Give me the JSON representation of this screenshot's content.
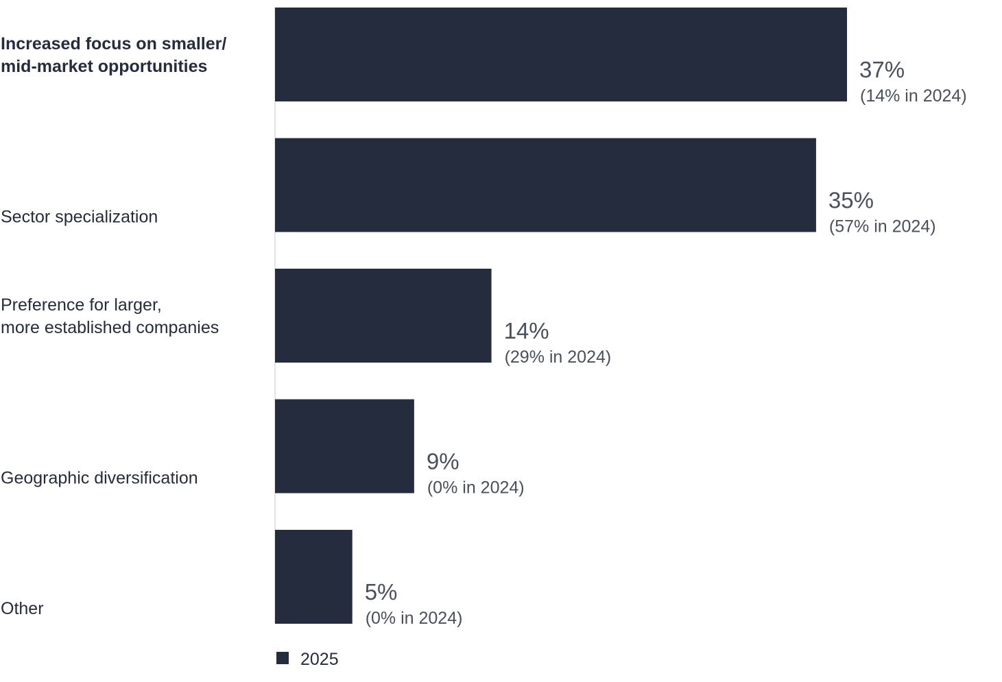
{
  "colors": {
    "bar": "#252c3e",
    "axis": "#c8c8c8",
    "text": "#252c3e",
    "value_text": "#4a4f5c"
  },
  "chart_data": {
    "type": "bar",
    "orientation": "horizontal",
    "categories": [
      [
        "Increased focus on smaller/",
        "mid-market opportunities"
      ],
      [
        "Sector specialization"
      ],
      [
        "Preference for larger,",
        "more established companies"
      ],
      [
        "Geographic diversification"
      ],
      [
        "Other"
      ]
    ],
    "highlighted_category_index": 0,
    "series": [
      {
        "name": "2025",
        "values": [
          37,
          35,
          14,
          9,
          5
        ]
      }
    ],
    "value_labels": [
      "37%",
      "35%",
      "14%",
      "9%",
      "5%"
    ],
    "prior_year_labels": [
      "(14% in 2024)",
      "(57% in 2024)",
      "(29% in 2024)",
      "(0% in 2024)",
      "(0% in 2024)"
    ],
    "prior_year_values": [
      14,
      57,
      29,
      0,
      0
    ],
    "xlim": [
      0,
      37
    ],
    "grid": false,
    "legend": {
      "placement": "bottom-left",
      "entries": [
        "2025"
      ]
    }
  }
}
